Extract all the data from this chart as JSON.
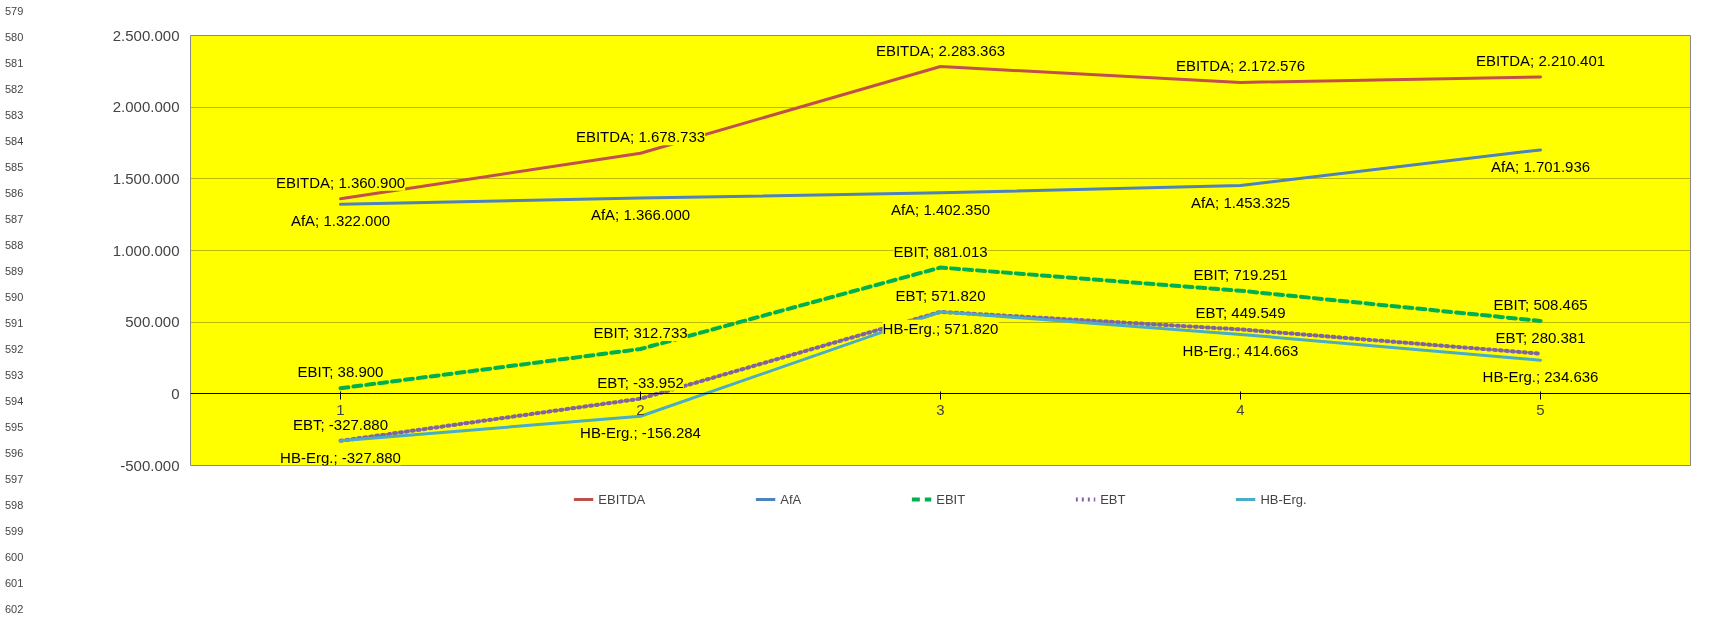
{
  "chart_data": {
    "type": "line",
    "categories": [
      "1",
      "2",
      "3",
      "4",
      "5"
    ],
    "series": [
      {
        "name": "EBITDA",
        "color": "#c0504d",
        "line_style": "solid",
        "values": [
          1360900,
          1678733,
          2283363,
          2172576,
          2210401
        ],
        "value_labels": [
          "EBITDA; 1.360.900",
          "EBITDA; 1.678.733",
          "EBITDA; 2.283.363",
          "EBITDA; 2.172.576",
          "EBITDA; 2.210.401"
        ]
      },
      {
        "name": "AfA",
        "color": "#4f81bd",
        "line_style": "solid",
        "values": [
          1322000,
          1366000,
          1402350,
          1453325,
          1701936
        ],
        "value_labels": [
          "AfA; 1.322.000",
          "AfA; 1.366.000",
          "AfA; 1.402.350",
          "AfA; 1.453.325",
          "AfA; 1.701.936"
        ]
      },
      {
        "name": "EBIT",
        "color": "#00b050",
        "line_style": "dashed",
        "values": [
          38900,
          312733,
          881013,
          719251,
          508465
        ],
        "value_labels": [
          "EBIT; 38.900",
          "EBIT; 312.733",
          "EBIT; 881.013",
          "EBIT; 719.251",
          "EBIT; 508.465"
        ]
      },
      {
        "name": "EBT",
        "color": "#8064a2",
        "line_style": "dotted",
        "values": [
          -327880,
          -33952,
          571820,
          449549,
          280381
        ],
        "value_labels": [
          "EBT; -327.880",
          "EBT; -33.952",
          "EBT; 571.820",
          "EBT; 449.549",
          "EBT; 280.381"
        ]
      },
      {
        "name": "HB-Erg.",
        "color": "#4bacc6",
        "line_style": "solid",
        "values": [
          -327880,
          -156284,
          571820,
          414663,
          234636
        ],
        "value_labels": [
          "HB-Erg.; -327.880",
          "HB-Erg.; -156.284",
          "HB-Erg.; 571.820",
          "HB-Erg.; 414.663",
          "HB-Erg.; 234.636"
        ]
      }
    ],
    "ylim": [
      -500000,
      2500000
    ],
    "yticks": [
      {
        "value": -500000,
        "label": "-500.000"
      },
      {
        "value": 0,
        "label": "0"
      },
      {
        "value": 500000,
        "label": "500.000"
      },
      {
        "value": 1000000,
        "label": "1.000.000"
      },
      {
        "value": 1500000,
        "label": "1.500.000"
      },
      {
        "value": 2000000,
        "label": "2.000.000"
      },
      {
        "value": 2500000,
        "label": "2.500.000"
      }
    ],
    "grid": "y",
    "legend": "bottom",
    "marker": "none",
    "annotations": [
      "579",
      "580",
      "581",
      "582",
      "583",
      "584",
      "585",
      "586",
      "587",
      "588",
      "589",
      "590",
      "591",
      "592",
      "593",
      "594",
      "595",
      "596",
      "597",
      "598",
      "599",
      "600",
      "601",
      "602"
    ]
  }
}
